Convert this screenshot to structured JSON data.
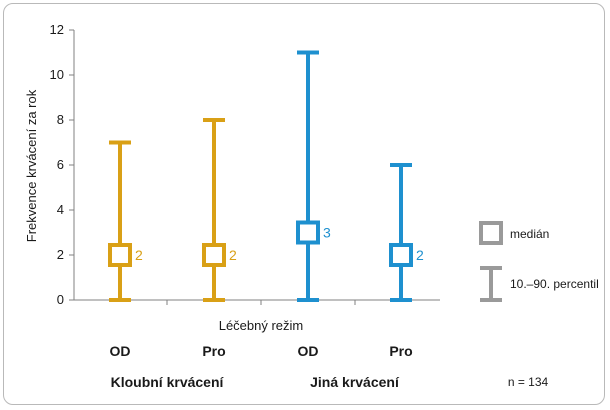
{
  "chart_data": {
    "type": "box",
    "ylabel": "Frekvence krvácení za rok",
    "xlabel": "Léčebný režim",
    "ylim": [
      0,
      12
    ],
    "yticks": [
      0,
      2,
      4,
      6,
      8,
      10,
      12
    ],
    "grid": false,
    "categories": [
      "OD",
      "Pro",
      "OD",
      "Pro"
    ],
    "groups": [
      {
        "label": "Kloubní krvácení",
        "categories": [
          0,
          1
        ]
      },
      {
        "label": "Jiná krvácení",
        "categories": [
          2,
          3
        ]
      }
    ],
    "items": [
      {
        "category": "OD",
        "group": "Kloubní krvácení",
        "median": 2,
        "median_label": "2",
        "p10": 0,
        "p90": 7,
        "color": "#d9a016"
      },
      {
        "category": "Pro",
        "group": "Kloubní krvácení",
        "median": 2,
        "median_label": "2",
        "p10": 0,
        "p90": 8,
        "color": "#d9a016"
      },
      {
        "category": "OD",
        "group": "Jiná krvácení",
        "median": 3,
        "median_label": "3",
        "p10": 0,
        "p90": 11,
        "color": "#1e90cf"
      },
      {
        "category": "Pro",
        "group": "Jiná krvácení",
        "median": 2,
        "median_label": "2",
        "p10": 0,
        "p90": 6,
        "color": "#1e90cf"
      }
    ],
    "legend": {
      "position": "right",
      "median_label": "medián",
      "percentile_label": "10.–90. percentil",
      "color": "#9a9a9a"
    },
    "annotation": "n = 134"
  }
}
